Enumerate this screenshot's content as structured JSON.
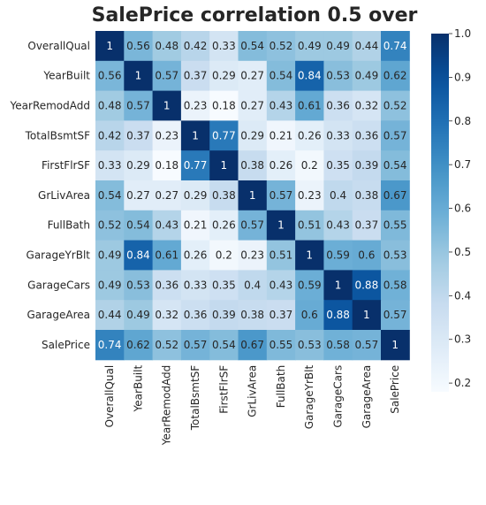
{
  "chart_data": {
    "type": "heatmap",
    "title": "SalePrice correlation 0.5 over",
    "colormap": "Blues",
    "vmin": 0.18,
    "vmax": 1.0,
    "labels": [
      "OverallQual",
      "YearBuilt",
      "YearRemodAdd",
      "TotalBsmtSF",
      "FirstFlrSF",
      "GrLivArea",
      "FullBath",
      "GarageYrBlt",
      "GarageCars",
      "GarageArea",
      "SalePrice"
    ],
    "matrix": [
      [
        1,
        0.56,
        0.48,
        0.42,
        0.33,
        0.54,
        0.52,
        0.49,
        0.49,
        0.44,
        0.74
      ],
      [
        0.56,
        1,
        0.57,
        0.37,
        0.29,
        0.27,
        0.54,
        0.84,
        0.53,
        0.49,
        0.62
      ],
      [
        0.48,
        0.57,
        1,
        0.23,
        0.18,
        0.27,
        0.43,
        0.61,
        0.36,
        0.32,
        0.52
      ],
      [
        0.42,
        0.37,
        0.23,
        1,
        0.77,
        0.29,
        0.21,
        0.26,
        0.33,
        0.36,
        0.57
      ],
      [
        0.33,
        0.29,
        0.18,
        0.77,
        1,
        0.38,
        0.26,
        0.2,
        0.35,
        0.39,
        0.54
      ],
      [
        0.54,
        0.27,
        0.27,
        0.29,
        0.38,
        1,
        0.57,
        0.23,
        0.4,
        0.38,
        0.67
      ],
      [
        0.52,
        0.54,
        0.43,
        0.21,
        0.26,
        0.57,
        1,
        0.51,
        0.43,
        0.37,
        0.55
      ],
      [
        0.49,
        0.84,
        0.61,
        0.26,
        0.2,
        0.23,
        0.51,
        1,
        0.59,
        0.6,
        0.53
      ],
      [
        0.49,
        0.53,
        0.36,
        0.33,
        0.35,
        0.4,
        0.43,
        0.59,
        1,
        0.88,
        0.58
      ],
      [
        0.44,
        0.49,
        0.32,
        0.36,
        0.39,
        0.38,
        0.37,
        0.6,
        0.88,
        1,
        0.57
      ],
      [
        0.74,
        0.62,
        0.52,
        0.57,
        0.54,
        0.67,
        0.55,
        0.53,
        0.58,
        0.57,
        1
      ]
    ],
    "colorbar_ticks": [
      "1.0",
      "0.9",
      "0.8",
      "0.7",
      "0.6",
      "0.5",
      "0.4",
      "0.3",
      "0.2"
    ],
    "colorbar_tick_values": [
      1.0,
      0.9,
      0.8,
      0.7,
      0.6,
      0.5,
      0.4,
      0.3,
      0.2
    ]
  }
}
